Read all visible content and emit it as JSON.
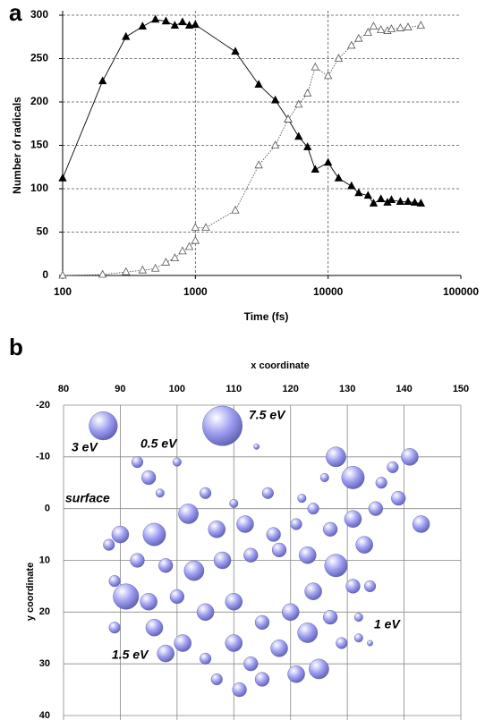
{
  "chart_data": [
    {
      "type": "line",
      "panel_label": "a",
      "xlabel": "Time (fs)",
      "ylabel": "Number of radicals",
      "xscale": "log",
      "xlim": [
        100,
        100000
      ],
      "xticks": [
        100,
        1000,
        10000,
        100000
      ],
      "ylim": [
        0,
        300
      ],
      "yticks": [
        0,
        50,
        100,
        150,
        200,
        250,
        300
      ],
      "grid": true,
      "series": [
        {
          "color": "#000000",
          "marker": "filled-triangle",
          "linestyle": "solid",
          "x": [
            100,
            200,
            300,
            400,
            500,
            600,
            700,
            800,
            900,
            1000,
            2000,
            3000,
            4000,
            5000,
            6000,
            7000,
            8000,
            10000,
            12000,
            15000,
            17000,
            20000,
            22000,
            25000,
            28000,
            30000,
            35000,
            40000,
            45000,
            50000
          ],
          "values": [
            112,
            224,
            275,
            287,
            295,
            293,
            288,
            292,
            288,
            289,
            258,
            220,
            202,
            180,
            160,
            148,
            122,
            130,
            112,
            103,
            95,
            92,
            83,
            88,
            84,
            87,
            85,
            85,
            84,
            83
          ]
        },
        {
          "color": "#555555",
          "marker": "open-triangle",
          "linestyle": "dotted",
          "x": [
            100,
            200,
            300,
            400,
            500,
            600,
            700,
            800,
            900,
            1000,
            1000,
            1200,
            2000,
            3000,
            4000,
            5000,
            6000,
            7000,
            8000,
            10000,
            12000,
            15000,
            17000,
            20000,
            22000,
            25000,
            28000,
            30000,
            35000,
            40000,
            50000
          ],
          "values": [
            0,
            1,
            4,
            6,
            8,
            15,
            20,
            28,
            33,
            40,
            55,
            55,
            75,
            127,
            150,
            180,
            197,
            210,
            240,
            230,
            250,
            265,
            273,
            280,
            287,
            283,
            282,
            284,
            285,
            286,
            288
          ]
        }
      ]
    },
    {
      "type": "bubble",
      "panel_label": "b",
      "xlabel": "x coordinate",
      "ylabel": "y coordinate",
      "xlim": [
        80,
        150
      ],
      "xticks": [
        80,
        90,
        100,
        110,
        120,
        130,
        140,
        150
      ],
      "ylim": [
        -20,
        40
      ],
      "yticks": [
        -20,
        -10,
        0,
        10,
        20,
        30,
        40
      ],
      "y_inverted": true,
      "grid": true,
      "color": "#9a9af0",
      "annotations": [
        "3 eV",
        "0.5 eV",
        "7.5 eV",
        "surface",
        "1 eV",
        "1.5 eV"
      ],
      "x": [
        87,
        108,
        93,
        95,
        100,
        114,
        128,
        131,
        141,
        138,
        136,
        139,
        143,
        97,
        105,
        110,
        116,
        122,
        126,
        124,
        90,
        96,
        102,
        107,
        112,
        117,
        121,
        127,
        131,
        135,
        133,
        128,
        123,
        118,
        113,
        108,
        103,
        98,
        93,
        88,
        89,
        95,
        91,
        100,
        105,
        110,
        115,
        120,
        124,
        127,
        131,
        134,
        132,
        96,
        101,
        89,
        98,
        105,
        110,
        113,
        118,
        123,
        125,
        121,
        115,
        111,
        107,
        129,
        132,
        134
      ],
      "y": [
        -16,
        -16,
        -9,
        -6,
        -9,
        -12,
        -10,
        -6,
        -10,
        -8,
        -5,
        -2,
        3,
        -3,
        -3,
        -1,
        -3,
        -2,
        -6,
        0,
        5,
        5,
        1,
        4,
        3,
        5,
        3,
        4,
        2,
        0,
        7,
        11,
        9,
        8,
        9,
        10,
        12,
        11,
        10,
        7,
        14,
        18,
        17,
        17,
        20,
        18,
        22,
        20,
        16,
        21,
        15,
        15,
        21,
        23,
        26,
        23,
        28,
        29,
        26,
        30,
        27,
        24,
        31,
        32,
        33,
        35,
        33,
        26,
        25,
        26
      ],
      "sizes": [
        5,
        7,
        2,
        2.5,
        1.5,
        1,
        3.5,
        4,
        3,
        2,
        2,
        2.5,
        3,
        1.5,
        2,
        1.5,
        2,
        1.5,
        1.5,
        2,
        3,
        4,
        3.5,
        3,
        3,
        2.5,
        2,
        2.5,
        3,
        2.5,
        3,
        4,
        3,
        2.5,
        2.5,
        3,
        3.5,
        2.5,
        2.5,
        2,
        2,
        3,
        4.5,
        2.5,
        3,
        3,
        2.5,
        3,
        3,
        2.5,
        2.5,
        2,
        1.5,
        3,
        3,
        2,
        3,
        2,
        3,
        2.5,
        3,
        3.5,
        3.5,
        3,
        2.5,
        2.5,
        2,
        2,
        1.5,
        1
      ]
    }
  ]
}
